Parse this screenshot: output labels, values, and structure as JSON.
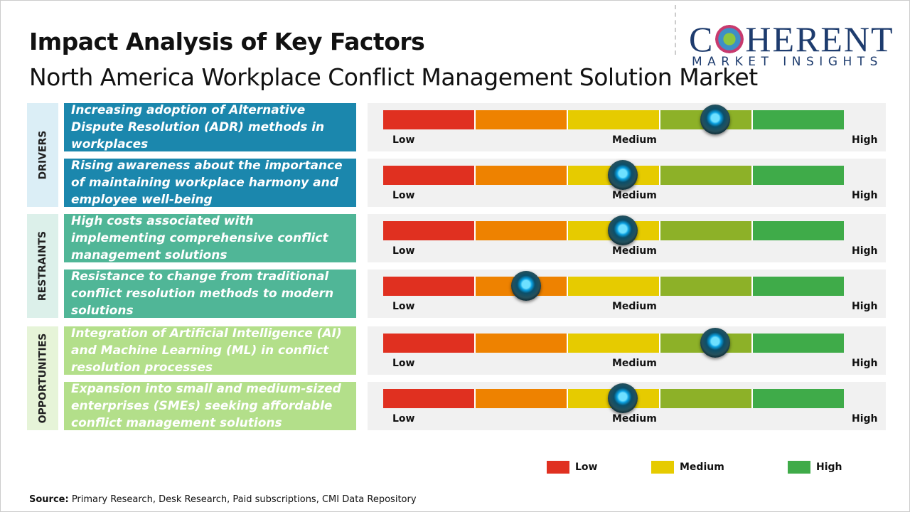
{
  "header": {
    "title": "Impact Analysis of Key Factors",
    "subtitle": "North America Workplace Conflict Management Solution Market"
  },
  "logo": {
    "line1": "COHERENT",
    "line2": "MARKET INSIGHTS"
  },
  "scale": {
    "low": "Low",
    "medium": "Medium",
    "high": "High"
  },
  "colors": {
    "seg": [
      "#e03020",
      "#ee8200",
      "#e6cb00",
      "#8db128",
      "#3fab49"
    ]
  },
  "categories": [
    {
      "label": "DRIVERS",
      "bg": "#dbeef6",
      "box": "#1b87ad"
    },
    {
      "label": "RESTRAINTS",
      "bg": "#dcf0ea",
      "box": "#50b697"
    },
    {
      "label": "OPPORTUNITIES",
      "bg": "#e6f4d8",
      "box": "#b3df8a"
    }
  ],
  "factors": [
    {
      "cat": 0,
      "text": "Increasing adoption of Alternative Dispute Resolution (ADR) methods in workplaces",
      "impact": 0.72
    },
    {
      "cat": 0,
      "text": "Rising awareness about the importance of maintaining workplace harmony and employee well-being",
      "impact": 0.52
    },
    {
      "cat": 1,
      "text": "High costs associated with implementing comprehensive conflict management solutions",
      "impact": 0.52
    },
    {
      "cat": 1,
      "text": "Resistance to change from traditional conflict resolution methods to modern solutions",
      "impact": 0.31
    },
    {
      "cat": 2,
      "text": "Integration of Artificial Intelligence (AI) and Machine Learning (ML) in conflict resolution processes",
      "impact": 0.72
    },
    {
      "cat": 2,
      "text": "Expansion into small and medium-sized enterprises (SMEs) seeking affordable conflict management solutions",
      "impact": 0.52
    }
  ],
  "legend": [
    {
      "label": "Low",
      "color": "#e03020"
    },
    {
      "label": "Medium",
      "color": "#e6cb00"
    },
    {
      "label": "High",
      "color": "#3fab49"
    }
  ],
  "source": {
    "label": "Source:",
    "text": " Primary Research, Desk Research, Paid subscriptions, CMI Data Repository"
  }
}
